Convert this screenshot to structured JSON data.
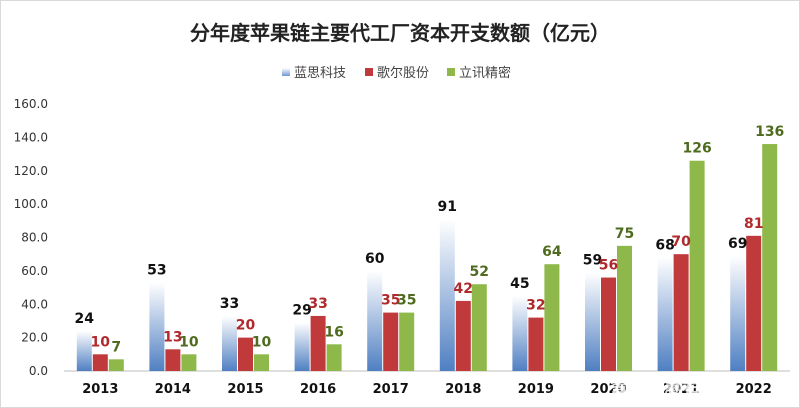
{
  "chart_data": {
    "type": "bar",
    "title": "分年度苹果链主要代工厂资本开支数额（亿元）",
    "categories": [
      "2013",
      "2014",
      "2015",
      "2016",
      "2017",
      "2018",
      "2019",
      "2020",
      "2021",
      "2022"
    ],
    "series": [
      {
        "name": "蓝思科技",
        "values": [
          24,
          53,
          33,
          29,
          60,
          91,
          45,
          59,
          68,
          69
        ],
        "color": "#5b86c4",
        "label_color": "#111111"
      },
      {
        "name": "歌尔股份",
        "values": [
          10,
          13,
          20,
          33,
          35,
          42,
          32,
          56,
          70,
          81
        ],
        "color": "#c0393b",
        "label_color": "#b02a2d"
      },
      {
        "name": "立讯精密",
        "values": [
          7,
          10,
          10,
          16,
          35,
          52,
          64,
          75,
          126,
          136
        ],
        "color": "#8fb84a",
        "label_color": "#4f6b1f"
      }
    ],
    "y_ticks": [
      "0.0",
      "20.0",
      "40.0",
      "60.0",
      "80.0",
      "100.0",
      "120.0",
      "140.0",
      "160.0"
    ],
    "ylim": [
      0,
      160
    ],
    "grid": false,
    "legend_position": "top-center"
  },
  "watermark": "雪球：慧若头"
}
